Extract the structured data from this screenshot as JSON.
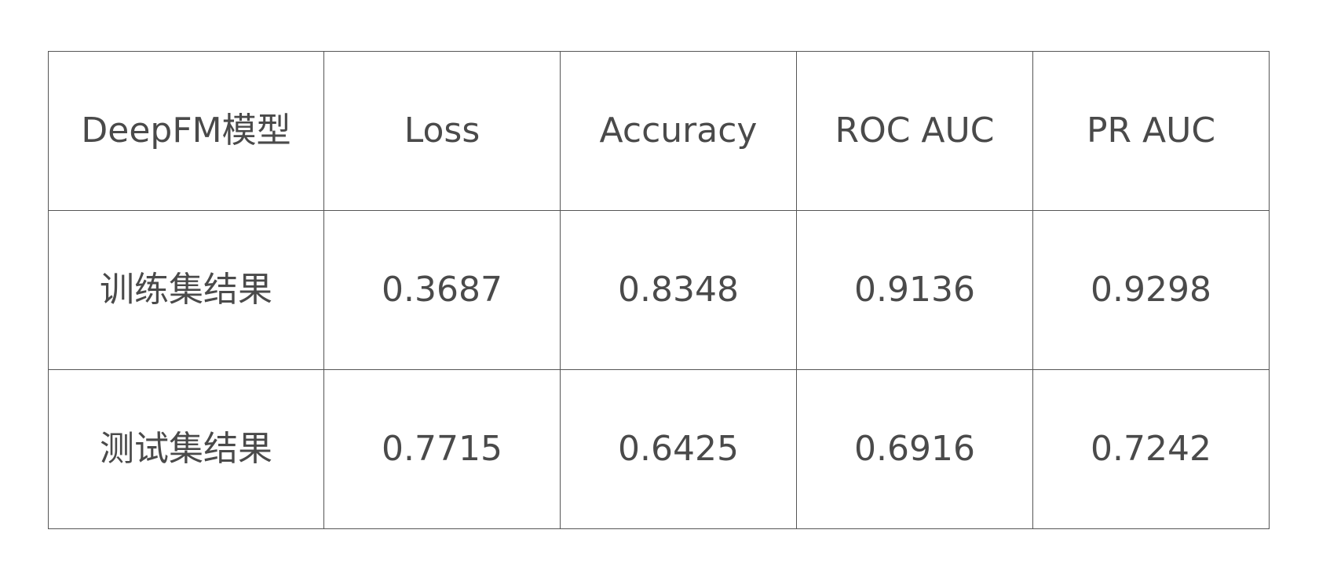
{
  "chart_data": {
    "type": "table",
    "columns": [
      "DeepFM模型",
      "Loss",
      "Accuracy",
      "ROC AUC",
      "PR AUC"
    ],
    "rows": [
      {
        "label": "训练集结果",
        "values": [
          "0.3687",
          "0.8348",
          "0.9136",
          "0.9298"
        ]
      },
      {
        "label": "测试集结果",
        "values": [
          "0.7715",
          "0.6425",
          "0.6916",
          "0.7242"
        ]
      }
    ]
  },
  "colors": {
    "text": "#4a4a4a",
    "border": "#555555",
    "background": "#ffffff"
  }
}
